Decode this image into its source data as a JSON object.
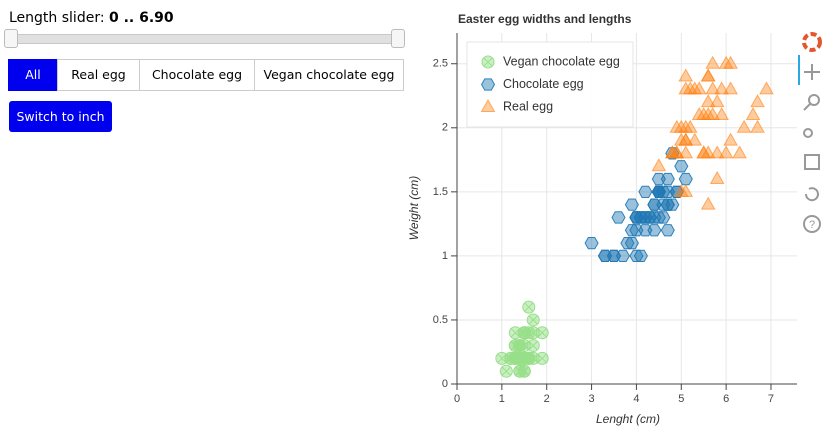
{
  "slider": {
    "label": "Length slider:",
    "value": "0 .. 6.90"
  },
  "button_group": {
    "buttons": [
      "All",
      "Real egg",
      "Chocolate egg",
      "Vegan chocolate egg"
    ],
    "active": 0
  },
  "toggle_button": {
    "label": "Switch to inch"
  },
  "chart_data": {
    "type": "scatter",
    "title": "Easter egg widths and lengths",
    "x_label": "Lenght (cm)",
    "y_label": "Weight (cm)",
    "xlim": [
      0,
      7.58
    ],
    "ylim": [
      0,
      2.74
    ],
    "xticks": [
      0,
      1,
      2,
      3,
      4,
      5,
      6,
      7
    ],
    "yticks": [
      0,
      0.5,
      1,
      1.5,
      2,
      2.5
    ],
    "grid": true,
    "legend": "top-left",
    "series": [
      {
        "name": "Vegan chocolate egg",
        "color": "#98df8a",
        "marker": "circle_x",
        "x": [
          1.4,
          1.4,
          1.3,
          1.5,
          1.4,
          1.7,
          1.4,
          1.5,
          1.4,
          1.5,
          1.5,
          1.6,
          1.4,
          1.1,
          1.2,
          1.5,
          1.3,
          1.4,
          1.7,
          1.5,
          1.7,
          1.5,
          1.0,
          1.7,
          1.9,
          1.6,
          1.6,
          1.5,
          1.4,
          1.6,
          1.6,
          1.5,
          1.5,
          1.4,
          1.5,
          1.2,
          1.3,
          1.4,
          1.3,
          1.5,
          1.3,
          1.3,
          1.3,
          1.6,
          1.9,
          1.4,
          1.6,
          1.4,
          1.5,
          1.4
        ],
        "values": [
          0.2,
          0.2,
          0.2,
          0.2,
          0.2,
          0.4,
          0.3,
          0.2,
          0.2,
          0.1,
          0.2,
          0.2,
          0.1,
          0.1,
          0.2,
          0.4,
          0.4,
          0.3,
          0.3,
          0.3,
          0.2,
          0.4,
          0.2,
          0.5,
          0.2,
          0.2,
          0.4,
          0.2,
          0.2,
          0.2,
          0.2,
          0.4,
          0.1,
          0.2,
          0.2,
          0.2,
          0.2,
          0.1,
          0.2,
          0.2,
          0.3,
          0.3,
          0.2,
          0.6,
          0.4,
          0.3,
          0.2,
          0.2,
          0.2,
          0.2
        ]
      },
      {
        "name": "Chocolate egg",
        "color": "#1f77b4",
        "marker": "hex",
        "x": [
          4.7,
          4.5,
          4.9,
          4.0,
          4.6,
          4.5,
          4.7,
          3.3,
          4.6,
          3.9,
          3.5,
          4.2,
          4.0,
          4.7,
          3.6,
          4.4,
          4.5,
          4.1,
          4.5,
          3.9,
          4.8,
          4.0,
          4.9,
          4.7,
          4.3,
          4.4,
          4.8,
          5.0,
          4.5,
          3.5,
          3.8,
          3.7,
          3.9,
          5.1,
          4.5,
          4.5,
          4.7,
          4.4,
          4.1,
          4.0,
          4.4,
          4.6,
          4.0,
          3.3,
          4.2,
          4.2,
          4.2,
          4.3,
          3.0,
          4.1
        ],
        "values": [
          1.4,
          1.5,
          1.5,
          1.3,
          1.5,
          1.3,
          1.6,
          1.0,
          1.3,
          1.4,
          1.0,
          1.5,
          1.0,
          1.4,
          1.3,
          1.4,
          1.5,
          1.0,
          1.5,
          1.1,
          1.8,
          1.3,
          1.5,
          1.2,
          1.3,
          1.4,
          1.4,
          1.7,
          1.5,
          1.0,
          1.1,
          1.0,
          1.2,
          1.6,
          1.5,
          1.6,
          1.5,
          1.3,
          1.3,
          1.3,
          1.2,
          1.4,
          1.2,
          1.0,
          1.3,
          1.2,
          1.3,
          1.3,
          1.1,
          1.3
        ]
      },
      {
        "name": "Real egg",
        "color": "#ff7f0e",
        "marker": "triangle",
        "x": [
          6.0,
          5.1,
          5.9,
          5.6,
          5.8,
          6.6,
          4.5,
          6.3,
          5.8,
          6.1,
          5.1,
          5.3,
          5.5,
          5.0,
          5.1,
          5.3,
          5.5,
          6.7,
          6.9,
          5.0,
          5.7,
          4.9,
          6.7,
          4.9,
          5.7,
          6.0,
          4.8,
          4.9,
          5.6,
          5.8,
          6.1,
          6.4,
          5.6,
          5.1,
          5.6,
          6.1,
          5.6,
          5.5,
          4.8,
          5.4,
          5.6,
          5.1,
          5.1,
          5.9,
          5.7,
          5.2,
          5.0,
          5.2,
          5.4,
          5.1
        ],
        "values": [
          2.5,
          1.9,
          2.1,
          1.8,
          2.2,
          2.1,
          1.7,
          1.8,
          1.8,
          2.5,
          2.0,
          1.9,
          2.1,
          2.0,
          2.4,
          2.3,
          1.8,
          2.2,
          2.3,
          1.5,
          2.3,
          2.0,
          2.0,
          1.8,
          2.1,
          1.8,
          1.8,
          1.8,
          2.1,
          1.6,
          1.9,
          2.0,
          2.2,
          1.5,
          1.4,
          2.3,
          2.4,
          1.8,
          1.8,
          2.1,
          2.4,
          2.3,
          1.9,
          2.3,
          2.5,
          2.3,
          1.9,
          2.0,
          2.3,
          1.8
        ]
      }
    ]
  }
}
